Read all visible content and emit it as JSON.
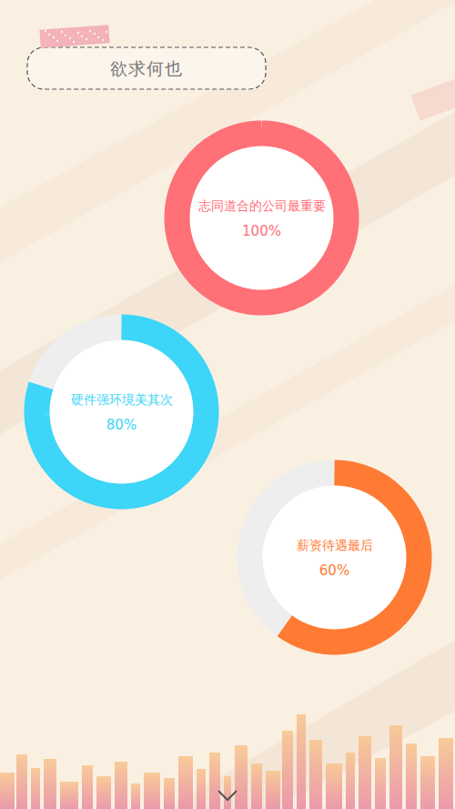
{
  "chart_data": {
    "type": "donut",
    "title": "欲求何也",
    "categories": [
      "志同道合的公司最重要",
      "硬件强环境美其次",
      "薪资待遇最后"
    ],
    "values": [
      100,
      80,
      60
    ],
    "value_labels": [
      "100%",
      "80%",
      "60%"
    ],
    "colors": [
      "#ff7077",
      "#3dd5f8",
      "#ff7a33"
    ],
    "ylim": [
      0,
      100
    ],
    "data_labels": true
  }
}
